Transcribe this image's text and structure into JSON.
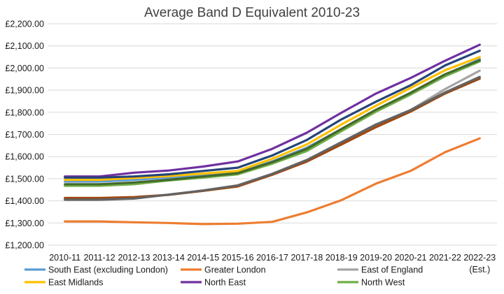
{
  "chart_data": {
    "type": "line",
    "title": "Average Band D Equivalent  2010-23",
    "xlabel": "",
    "ylabel": "",
    "categories": [
      "2010-11",
      "2011-12",
      "2012-13",
      "2013-14",
      "2014-15",
      "2015-16",
      "2016-17",
      "2017-18",
      "2018-19",
      "2019-20",
      "2020-21",
      "2021-22",
      "2022-23\n(Est.)"
    ],
    "ylim": [
      1200,
      2200
    ],
    "yticks": [
      1200,
      1300,
      1400,
      1500,
      1600,
      1700,
      1800,
      1900,
      2000,
      2100,
      2200
    ],
    "ytick_labels": [
      "£1,200.00",
      "£1,300.00",
      "£1,400.00",
      "£1,500.00",
      "£1,600.00",
      "£1,700.00",
      "£1,800.00",
      "£1,900.00",
      "£2,000.00",
      "£2,100.00",
      "£2,200.00"
    ],
    "grid": true,
    "legend_position": "bottom",
    "series": [
      {
        "name": "South East (excluding London)",
        "color": "#5b9bd5",
        "values": [
          1487,
          1487,
          1495,
          1505,
          1515,
          1527,
          1578,
          1640,
          1725,
          1810,
          1888,
          1970,
          2040
        ],
        "in_legend": true
      },
      {
        "name": "Greater London",
        "color": "#ed7d31",
        "values": [
          1307,
          1307,
          1303,
          1300,
          1295,
          1297,
          1305,
          1348,
          1403,
          1478,
          1535,
          1620,
          1682
        ],
        "in_legend": true
      },
      {
        "name": "East of England",
        "color": "#a5a5a5",
        "values": [
          1408,
          1408,
          1412,
          1428,
          1445,
          1468,
          1520,
          1577,
          1655,
          1740,
          1810,
          1905,
          1988
        ],
        "in_legend": true
      },
      {
        "name": "East Midlands",
        "color": "#ffc000",
        "values": [
          1495,
          1495,
          1503,
          1512,
          1523,
          1535,
          1590,
          1655,
          1745,
          1830,
          1910,
          1990,
          2050
        ],
        "in_legend": true
      },
      {
        "name": "North East",
        "color": "#7030a0",
        "values": [
          1510,
          1510,
          1527,
          1537,
          1555,
          1578,
          1635,
          1708,
          1798,
          1885,
          1955,
          2033,
          2105
        ],
        "in_legend": true
      },
      {
        "name": "North West",
        "color": "#70ad47",
        "values": [
          1468,
          1468,
          1475,
          1492,
          1505,
          1520,
          1568,
          1625,
          1715,
          1803,
          1880,
          1963,
          2030
        ],
        "in_legend": true
      },
      {
        "name": "",
        "color": "#264478",
        "values": [
          1505,
          1505,
          1510,
          1520,
          1535,
          1550,
          1605,
          1675,
          1768,
          1848,
          1922,
          2012,
          2078
        ],
        "in_legend": false
      },
      {
        "name": "",
        "color": "#9e480e",
        "values": [
          1413,
          1413,
          1417,
          1427,
          1445,
          1465,
          1518,
          1578,
          1655,
          1733,
          1803,
          1885,
          1952
        ],
        "in_legend": false
      },
      {
        "name": "",
        "color": "#43682b",
        "values": [
          1475,
          1475,
          1483,
          1495,
          1510,
          1525,
          1575,
          1635,
          1725,
          1812,
          1888,
          1972,
          2035
        ],
        "in_legend": false
      },
      {
        "name": "",
        "color": "#636363",
        "values": [
          1405,
          1405,
          1410,
          1428,
          1447,
          1470,
          1522,
          1585,
          1665,
          1745,
          1810,
          1890,
          1960
        ],
        "in_legend": false
      }
    ]
  }
}
